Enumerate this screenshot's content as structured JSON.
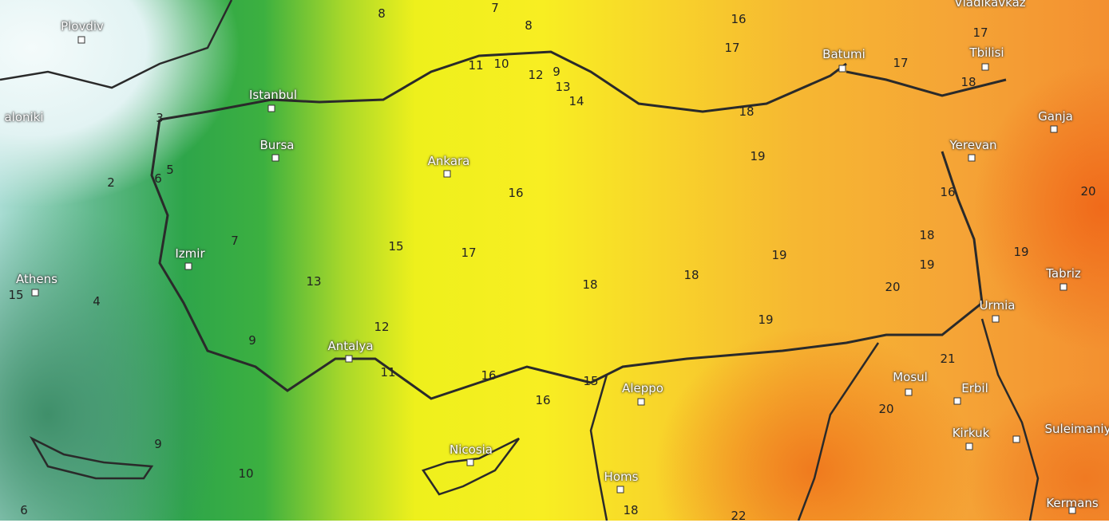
{
  "map": {
    "cities": [
      {
        "name": "Plovdiv"
      },
      {
        "name": "Istanbul"
      },
      {
        "name": "Bursa"
      },
      {
        "name": "Ankara"
      },
      {
        "name": "Izmir"
      },
      {
        "name": "Athens"
      },
      {
        "name": "Antalya"
      },
      {
        "name": "Batumi"
      },
      {
        "name": "Tbilisi"
      },
      {
        "name": "Ganja"
      },
      {
        "name": "Yerevan"
      },
      {
        "name": "Tabriz"
      },
      {
        "name": "Urmia"
      },
      {
        "name": "Mosul"
      },
      {
        "name": "Erbil"
      },
      {
        "name": "Kirkuk"
      },
      {
        "name": "Suleimaniy"
      },
      {
        "name": "Aleppo"
      },
      {
        "name": "Homs"
      },
      {
        "name": "Nicosia"
      },
      {
        "name": "Kermans"
      },
      {
        "name": "aloniki"
      },
      {
        "name": "Vladikavkaz"
      }
    ],
    "temperatures": [
      "8",
      "7",
      "8",
      "16",
      "17",
      "11",
      "10",
      "12",
      "9",
      "13",
      "14",
      "17",
      "17",
      "18",
      "18",
      "19",
      "16",
      "15",
      "17",
      "13",
      "12",
      "11",
      "16",
      "16",
      "15",
      "18",
      "18",
      "19",
      "19",
      "18",
      "19",
      "20",
      "21",
      "20",
      "22",
      "18",
      "19",
      "16",
      "3",
      "5",
      "6",
      "2",
      "7",
      "4",
      "9",
      "9",
      "10",
      "6",
      "20",
      "15"
    ],
    "colors": {
      "cold": "#a8dcd3",
      "green": "#2ea54a",
      "yellow": "#f8ee22",
      "orange": "#f39030"
    }
  }
}
